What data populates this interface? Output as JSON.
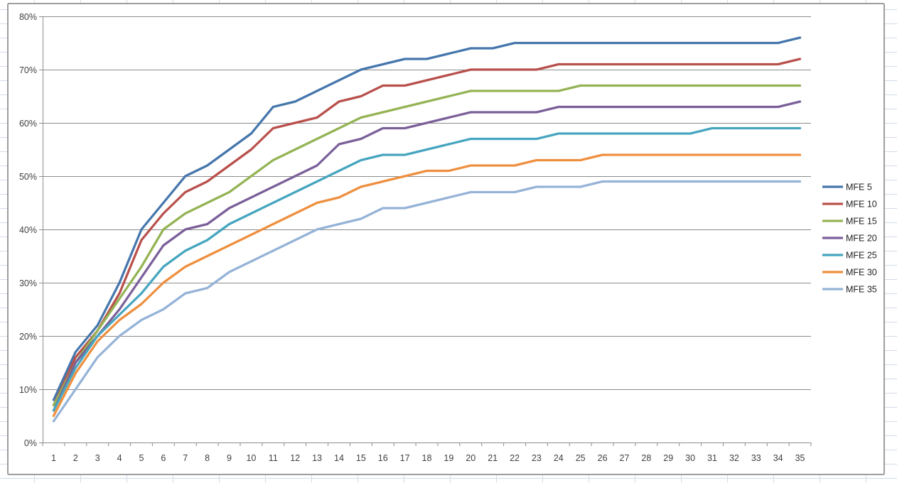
{
  "chart_data": {
    "type": "line",
    "title": "",
    "xlabel": "",
    "ylabel": "",
    "categories": [
      1,
      2,
      3,
      4,
      5,
      6,
      7,
      8,
      9,
      10,
      11,
      12,
      13,
      14,
      15,
      16,
      17,
      18,
      19,
      20,
      21,
      22,
      23,
      24,
      25,
      26,
      27,
      28,
      29,
      30,
      31,
      32,
      33,
      34,
      35
    ],
    "y_axis": {
      "min": 0,
      "max": 80,
      "step": 10,
      "format": "percent",
      "tick_labels": [
        "0%",
        "10%",
        "20%",
        "30%",
        "40%",
        "50%",
        "60%",
        "70%",
        "80%"
      ]
    },
    "grid": true,
    "legend_position": "right",
    "series": [
      {
        "name": "MFE 5",
        "color": "#4576AC",
        "values": [
          8,
          17,
          22,
          30,
          40,
          45,
          50,
          52,
          55,
          58,
          63,
          64,
          66,
          68,
          70,
          71,
          72,
          72,
          73,
          74,
          74,
          75,
          75,
          75,
          75,
          75,
          75,
          75,
          75,
          75,
          75,
          75,
          75,
          75,
          76
        ]
      },
      {
        "name": "MFE 10",
        "color": "#B8504C",
        "values": [
          7,
          16,
          21,
          28,
          38,
          43,
          47,
          49,
          52,
          55,
          59,
          60,
          61,
          64,
          65,
          67,
          67,
          68,
          69,
          70,
          70,
          70,
          70,
          71,
          71,
          71,
          71,
          71,
          71,
          71,
          71,
          71,
          71,
          71,
          72
        ]
      },
      {
        "name": "MFE 15",
        "color": "#94B354",
        "values": [
          7,
          15,
          21,
          27,
          33,
          40,
          43,
          45,
          47,
          50,
          53,
          55,
          57,
          59,
          61,
          62,
          63,
          64,
          65,
          66,
          66,
          66,
          66,
          66,
          67,
          67,
          67,
          67,
          67,
          67,
          67,
          67,
          67,
          67,
          67
        ]
      },
      {
        "name": "MFE 20",
        "color": "#7A5F99",
        "values": [
          6,
          15,
          20,
          25,
          31,
          37,
          40,
          41,
          44,
          46,
          48,
          50,
          52,
          56,
          57,
          59,
          59,
          60,
          61,
          62,
          62,
          62,
          62,
          63,
          63,
          63,
          63,
          63,
          63,
          63,
          63,
          63,
          63,
          63,
          64
        ]
      },
      {
        "name": "MFE 25",
        "color": "#46A5BF",
        "values": [
          6,
          14,
          20,
          24,
          28,
          33,
          36,
          38,
          41,
          43,
          45,
          47,
          49,
          51,
          53,
          54,
          54,
          55,
          56,
          57,
          57,
          57,
          57,
          58,
          58,
          58,
          58,
          58,
          58,
          58,
          59,
          59,
          59,
          59,
          59
        ]
      },
      {
        "name": "MFE 30",
        "color": "#EE8F3F",
        "values": [
          5,
          13,
          19,
          23,
          26,
          30,
          33,
          35,
          37,
          39,
          41,
          43,
          45,
          46,
          48,
          49,
          50,
          51,
          51,
          52,
          52,
          52,
          53,
          53,
          53,
          54,
          54,
          54,
          54,
          54,
          54,
          54,
          54,
          54,
          54
        ]
      },
      {
        "name": "MFE 35",
        "color": "#95B3D7",
        "values": [
          4,
          10,
          16,
          20,
          23,
          25,
          28,
          29,
          32,
          34,
          36,
          38,
          40,
          41,
          42,
          44,
          44,
          45,
          46,
          47,
          47,
          47,
          48,
          48,
          48,
          49,
          49,
          49,
          49,
          49,
          49,
          49,
          49,
          49,
          49
        ]
      }
    ],
    "colors": {
      "plot_gridline": "#8C8C8C",
      "axis_line": "#8C8C8C",
      "chart_border": "#7F7F7F",
      "chart_fill": "#FFFFFF",
      "sheet_gridline": "#D3DBE8",
      "label_text": "#3F3F3F"
    }
  }
}
